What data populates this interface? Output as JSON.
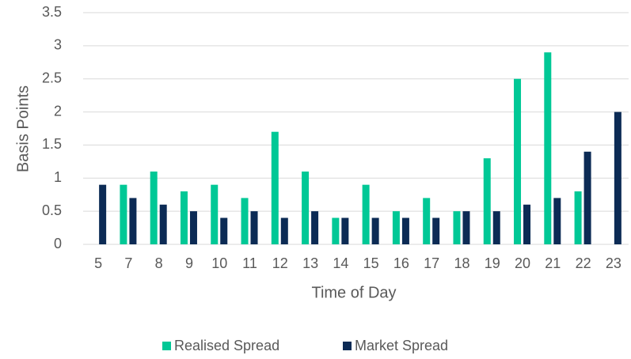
{
  "chart_data": {
    "type": "bar",
    "xlabel": "Time of Day",
    "ylabel": "Basis Points",
    "categories": [
      "5",
      "7",
      "8",
      "9",
      "10",
      "11",
      "12",
      "13",
      "14",
      "15",
      "16",
      "17",
      "18",
      "19",
      "20",
      "21",
      "22",
      "23"
    ],
    "series": [
      {
        "name": "Realised Spread",
        "color": "#00c896",
        "values": [
          null,
          0.9,
          1.1,
          0.8,
          0.9,
          0.7,
          1.7,
          1.1,
          0.4,
          0.9,
          0.5,
          0.7,
          0.5,
          1.3,
          2.5,
          2.9,
          0.8,
          null
        ]
      },
      {
        "name": "Market Spread",
        "color": "#0c2b55",
        "values": [
          0.9,
          0.7,
          0.6,
          0.5,
          0.4,
          0.5,
          0.4,
          0.5,
          0.4,
          0.4,
          0.4,
          0.4,
          0.5,
          0.5,
          0.6,
          0.7,
          1.4,
          2
        ]
      }
    ],
    "ylim": [
      0,
      3.5
    ],
    "yticks": [
      0,
      0.5,
      1,
      1.5,
      2,
      2.5,
      3,
      3.5
    ],
    "grid": true,
    "legend": "bottom"
  }
}
